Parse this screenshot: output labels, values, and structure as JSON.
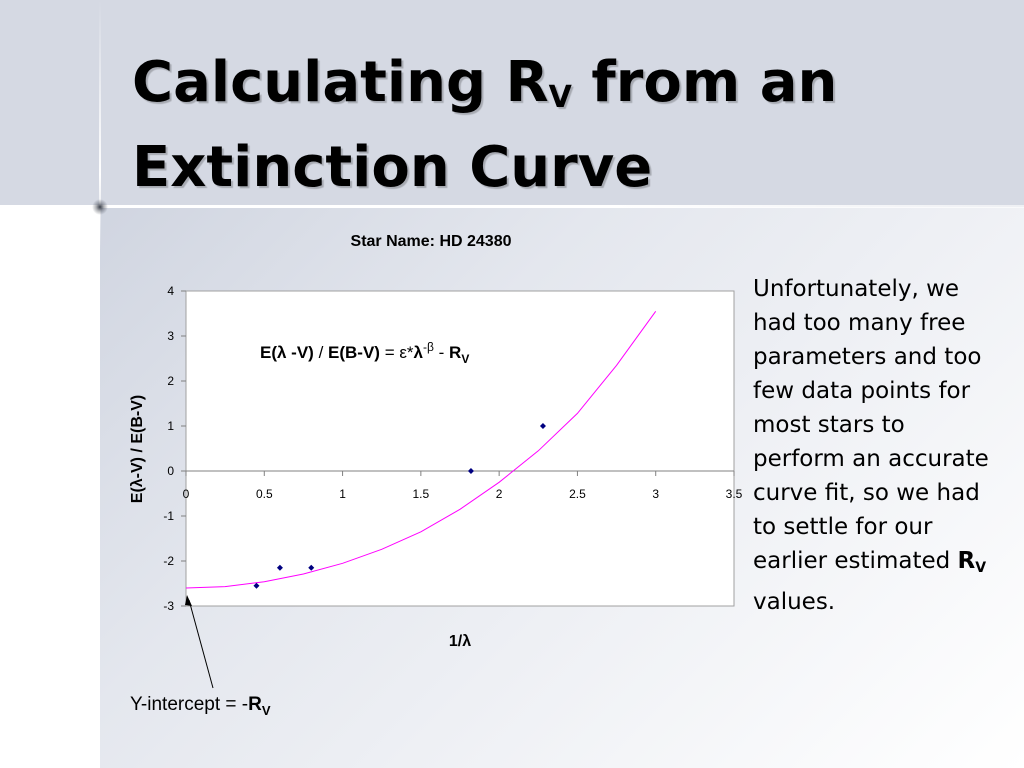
{
  "slide": {
    "title_line1_prefix": "Calculating R",
    "title_line1_sub": "V",
    "title_line1_suffix": " from an",
    "title_line2": "Extinction Curve",
    "body_text": "Unfortunately, we had too many free parameters and too few data points for most stars to perform an accurate curve fit, so we had to settle for our earlier estimated",
    "body_bold": "R",
    "body_bold_sub": "V",
    "body_end": " values."
  },
  "chart_data": {
    "type": "scatter",
    "title": "Star Name: HD 24380",
    "xlabel": "1/λ",
    "ylabel": "E(λ-V) / E(B-V)",
    "xlim": [
      0,
      3.5
    ],
    "ylim": [
      -3,
      4
    ],
    "x_ticks": [
      "0",
      "0.5",
      "1",
      "1.5",
      "2",
      "2.5",
      "3",
      "3.5"
    ],
    "y_ticks": [
      "4",
      "3",
      "2",
      "1",
      "0",
      "-1",
      "-2",
      "-3"
    ],
    "grid": false,
    "points": {
      "x": [
        0.45,
        0.6,
        0.8,
        1.82,
        2.28
      ],
      "y": [
        -2.55,
        -2.15,
        -2.15,
        0.0,
        1.0
      ]
    },
    "fit_curve": {
      "x": [
        0,
        0.25,
        0.5,
        0.75,
        1.0,
        1.25,
        1.5,
        1.75,
        2.0,
        2.25,
        2.5,
        2.75,
        3.0
      ],
      "y": [
        -2.6,
        -2.57,
        -2.46,
        -2.29,
        -2.05,
        -1.74,
        -1.35,
        -0.85,
        -0.25,
        0.45,
        1.28,
        2.35,
        3.55
      ]
    },
    "equation": {
      "p1": "E(λ -V)",
      "p2": " / ",
      "p3": "E(B-V)",
      "p4": " = ε*",
      "p5": "λ",
      "p6": "-β",
      "p7": " - ",
      "p8": "R",
      "p9": "V"
    },
    "annotation": {
      "prefix": "Y-intercept = -",
      "bold": "R",
      "sub": "V"
    },
    "colors": {
      "points": "#000080",
      "fit_curve": "#ff00ff",
      "zero_line": "#808080",
      "frame": "#a0a0a0"
    }
  }
}
